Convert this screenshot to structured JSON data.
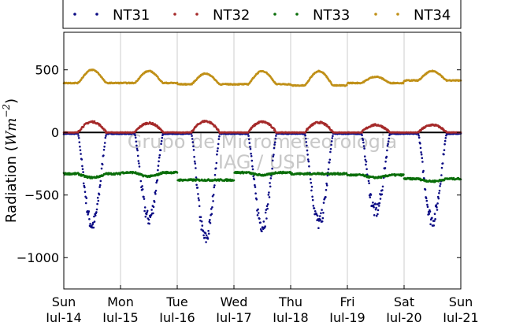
{
  "chart_data": {
    "type": "scatter",
    "ylabel": "Radiation (W m⁻²)",
    "ylabel_prefix": "Radiation (",
    "ylabel_unit": "Wm",
    "ylabel_exp": "−2",
    "ylabel_suffix": ")",
    "ylim": [
      -1250,
      800
    ],
    "xlim": [
      0,
      7
    ],
    "yticks": [
      500,
      0,
      -500,
      -1000
    ],
    "ytick_labels": [
      "500",
      "0",
      "−500",
      "−1000"
    ],
    "xticks": [
      {
        "x": 0,
        "day": "Sun",
        "date": "Jul-14"
      },
      {
        "x": 1,
        "day": "Mon",
        "date": "Jul-15"
      },
      {
        "x": 2,
        "day": "Tue",
        "date": "Jul-16"
      },
      {
        "x": 3,
        "day": "Wed",
        "date": "Jul-17"
      },
      {
        "x": 4,
        "day": "Thu",
        "date": "Jul-18"
      },
      {
        "x": 5,
        "day": "Fri",
        "date": "Jul-19"
      },
      {
        "x": 6,
        "day": "Sat",
        "date": "Jul-20"
      },
      {
        "x": 7,
        "day": "Sun",
        "date": "Jul-21"
      }
    ],
    "grid": "vertical",
    "zero_line": true,
    "legend_position": "top",
    "series": [
      {
        "name": "NT31",
        "color": "#0b0b84",
        "baseline": -10,
        "peak": [
          -730,
          -680,
          -840,
          -730,
          -710,
          -620,
          -690
        ]
      },
      {
        "name": "NT32",
        "color": "#a52a2a",
        "baseline": 0,
        "peak": [
          85,
          75,
          90,
          85,
          80,
          60,
          60
        ]
      },
      {
        "name": "NT33",
        "color": "#0a6e0a",
        "night": [
          -330,
          -320,
          -380,
          -320,
          -330,
          -340,
          -370
        ],
        "day": [
          -360,
          -350,
          -380,
          -340,
          -330,
          -360,
          -390
        ]
      },
      {
        "name": "NT34",
        "color": "#c09018",
        "night": [
          395,
          395,
          385,
          385,
          375,
          395,
          415
        ],
        "peak": [
          500,
          490,
          470,
          490,
          490,
          445,
          490
        ]
      }
    ],
    "watermark": [
      "Grupo de Micrometeorologia",
      "IAG / USP"
    ]
  }
}
